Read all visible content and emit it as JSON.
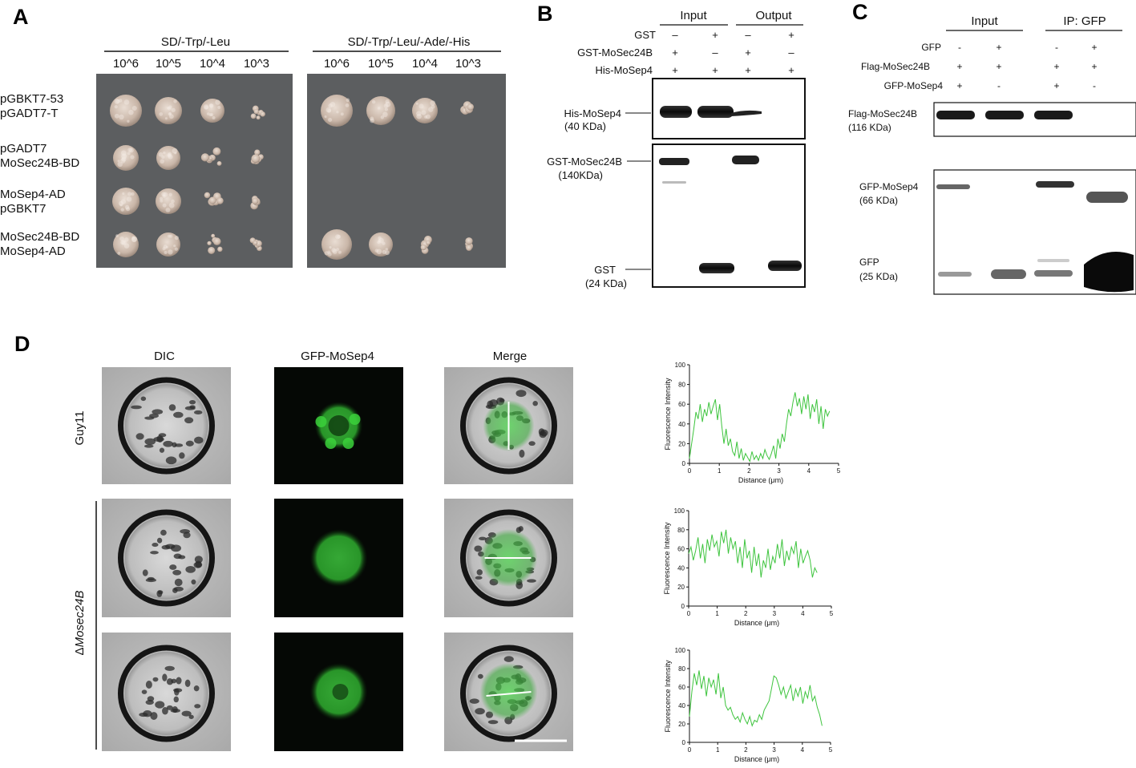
{
  "panel_a": {
    "letter": "A",
    "plate1_title": "SD/-Trp/-Leu",
    "plate2_title": "SD/-Trp/-Leu/-Ade/-His",
    "dilutions": [
      "10^6",
      "10^5",
      "10^4",
      "10^3"
    ],
    "rows": [
      {
        "line1": "pGBKT7-53",
        "line2": "pGADT7-T"
      },
      {
        "line1": "pGADT7",
        "line2": "MoSec24B-BD"
      },
      {
        "line1": "MoSep4-AD",
        "line2": "pGBKT7"
      },
      {
        "line1": "MoSec24B-BD",
        "line2": "MoSep4-AD"
      }
    ],
    "plate_color": "#5c5e60"
  },
  "panel_b": {
    "letter": "B",
    "group_input": "Input",
    "group_output": "Output",
    "conditions": [
      {
        "label": "GST",
        "signs": [
          "–",
          "+",
          "–",
          "+"
        ]
      },
      {
        "label": "GST-MoSec24B",
        "signs": [
          "+",
          "–",
          "+",
          "–"
        ]
      },
      {
        "label": "His-MoSep4",
        "signs": [
          "+",
          "+",
          "+",
          "+"
        ]
      }
    ],
    "bands": [
      {
        "name": "His-MoSep4",
        "size": "(40 KDa)"
      },
      {
        "name": "GST-MoSec24B",
        "size": "(140KDa)"
      },
      {
        "name": "GST",
        "size": "(24 KDa)"
      }
    ]
  },
  "panel_c": {
    "letter": "C",
    "group_input": "Input",
    "group_ip": "IP: GFP",
    "conditions": [
      {
        "label": "GFP",
        "signs": [
          "-",
          "+",
          "-",
          "+"
        ]
      },
      {
        "label": "Flag-MoSec24B",
        "signs": [
          "+",
          "+",
          "+",
          "+"
        ]
      },
      {
        "label": "GFP-MoSep4",
        "signs": [
          "+",
          "-",
          "+",
          "-"
        ]
      }
    ],
    "bands": [
      {
        "name": "Flag-MoSec24B",
        "size": "(116 KDa)"
      },
      {
        "name": "GFP-MoSep4",
        "size": "(66 KDa)"
      },
      {
        "name": "GFP",
        "size": "(25 KDa)"
      }
    ]
  },
  "panel_d": {
    "letter": "D",
    "columns": [
      "DIC",
      "GFP-MoSep4",
      "Merge"
    ],
    "row_label_1": "Guy11",
    "row_label_2_symbol": "Δ",
    "row_label_2_name": "Mosec24B",
    "green": "#3ec43e"
  },
  "chart_data": [
    {
      "type": "line",
      "xlabel": "Distance (μm)",
      "ylabel": "Fluorescence Intensity",
      "xlim": [
        0,
        5
      ],
      "ylim": [
        0,
        100
      ],
      "xticks": [
        "0",
        "1",
        "2",
        "3",
        "4",
        "5"
      ],
      "yticks": [
        "0",
        "20",
        "40",
        "60",
        "80",
        "100"
      ],
      "x_max": 4.7,
      "y": [
        5,
        20,
        35,
        52,
        45,
        60,
        42,
        55,
        48,
        62,
        50,
        58,
        65,
        44,
        60,
        38,
        20,
        35,
        18,
        25,
        12,
        8,
        22,
        5,
        15,
        3,
        10,
        6,
        2,
        12,
        4,
        8,
        3,
        10,
        5,
        14,
        8,
        4,
        10,
        18,
        5,
        25,
        15,
        30,
        22,
        40,
        55,
        48,
        62,
        72,
        58,
        66,
        50,
        68,
        55,
        70,
        45,
        60,
        52,
        65,
        40,
        58,
        35,
        55,
        48,
        53
      ]
    },
    {
      "type": "line",
      "xlabel": "Distance (μm)",
      "ylabel": "Fluorescence Intensity",
      "xlim": [
        0,
        5
      ],
      "ylim": [
        0,
        100
      ],
      "xticks": [
        "0",
        "1",
        "2",
        "3",
        "4",
        "5"
      ],
      "yticks": [
        "0",
        "20",
        "40",
        "60",
        "80",
        "100"
      ],
      "x_max": 4.5,
      "y": [
        55,
        62,
        48,
        58,
        72,
        50,
        65,
        45,
        70,
        58,
        75,
        62,
        68,
        52,
        78,
        66,
        80,
        55,
        72,
        60,
        68,
        45,
        62,
        40,
        70,
        50,
        58,
        35,
        62,
        42,
        55,
        30,
        48,
        40,
        60,
        38,
        52,
        45,
        65,
        50,
        70,
        42,
        58,
        48,
        62,
        55,
        68,
        40,
        60,
        45,
        52,
        58,
        48,
        30,
        40,
        35
      ]
    },
    {
      "type": "line",
      "xlabel": "Distance (μm)",
      "ylabel": "Fluorescence Intensity",
      "xlim": [
        0,
        5
      ],
      "ylim": [
        0,
        100
      ],
      "xticks": [
        "0",
        "1",
        "2",
        "3",
        "4",
        "5"
      ],
      "yticks": [
        "0",
        "20",
        "40",
        "60",
        "80",
        "100"
      ],
      "x_max": 4.7,
      "y": [
        28,
        55,
        75,
        62,
        78,
        58,
        72,
        50,
        70,
        60,
        68,
        52,
        75,
        48,
        60,
        40,
        35,
        38,
        30,
        25,
        28,
        22,
        32,
        25,
        20,
        28,
        18,
        24,
        22,
        30,
        25,
        35,
        40,
        45,
        58,
        72,
        70,
        62,
        52,
        60,
        48,
        55,
        62,
        45,
        58,
        50,
        60,
        42,
        55,
        48,
        62,
        45,
        50,
        38,
        30,
        18
      ]
    }
  ]
}
